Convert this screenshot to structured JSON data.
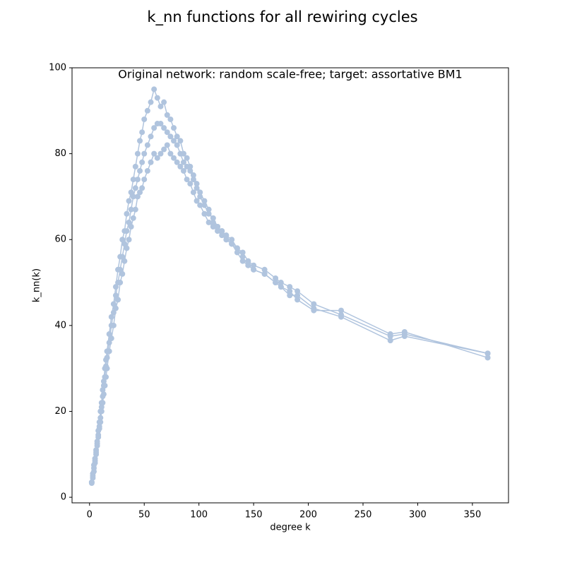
{
  "chart_data": {
    "type": "line",
    "title": "k_nn functions for all rewiring cycles",
    "subtitle": "Original network: random scale-free; target: assortative BM1",
    "x_label": "degree k",
    "y_label": "k_nn(k)",
    "x": [
      2,
      3,
      4,
      5,
      6,
      7,
      8,
      9,
      10,
      11,
      12,
      13,
      14,
      15,
      16,
      18,
      20,
      22,
      24,
      26,
      28,
      30,
      32,
      34,
      36,
      38,
      40,
      42,
      44,
      46,
      48,
      50,
      53,
      56,
      59,
      62,
      65,
      68,
      71,
      74,
      77,
      80,
      83,
      86,
      89,
      92,
      95,
      98,
      101,
      105,
      109,
      113,
      117,
      121,
      125,
      130,
      135,
      140,
      145,
      150,
      160,
      170,
      175,
      183,
      190,
      205,
      230,
      275,
      288,
      364
    ],
    "series": [
      {
        "color": "#b0c4de",
        "values": [
          3.5,
          5,
          6.8,
          8.5,
          10.5,
          12.5,
          14.5,
          16.5,
          18.5,
          21,
          23.5,
          26,
          28,
          30.5,
          32.5,
          36,
          40,
          43,
          47,
          50,
          53,
          56,
          59,
          62,
          64,
          67,
          70,
          72,
          74,
          76,
          78,
          80,
          82,
          84,
          86,
          87,
          87,
          86,
          85,
          84,
          83,
          82,
          80,
          78,
          77,
          76,
          74,
          72,
          70,
          68,
          66,
          65,
          63,
          62,
          61,
          60,
          58,
          57,
          55,
          54,
          53,
          51,
          50,
          49,
          48,
          45,
          42.5,
          37.5,
          38,
          33.5
        ]
      },
      {
        "color": "#b0c4de",
        "values": [
          3.3,
          5.5,
          7.5,
          9,
          11,
          13,
          15.5,
          17.5,
          20,
          22,
          25,
          27,
          30,
          32,
          34,
          38,
          42,
          45,
          49,
          53,
          56,
          60,
          62,
          66,
          69,
          71,
          74,
          77,
          80,
          83,
          85,
          88,
          90,
          92,
          95,
          93,
          91,
          92,
          89,
          88,
          86,
          84,
          83,
          80,
          79,
          77,
          75,
          73,
          71,
          69,
          67,
          64,
          63,
          62,
          60,
          59,
          58,
          56,
          54,
          53,
          52,
          50,
          49,
          48,
          46,
          43.5,
          43.5,
          38,
          38.5,
          32.5
        ]
      },
      {
        "color": "#b0c4de",
        "values": [
          3.5,
          4.5,
          6,
          8,
          10,
          12,
          14,
          16,
          17.5,
          20,
          22,
          24,
          26,
          28,
          30,
          34,
          37,
          40,
          44,
          46,
          50,
          52,
          55,
          58,
          60,
          63,
          65,
          67,
          70,
          71,
          72,
          74,
          76,
          78,
          80,
          79,
          80,
          81,
          82,
          80,
          79,
          78,
          77,
          76,
          74,
          73,
          71,
          69,
          68,
          66,
          64,
          63,
          62,
          61,
          60,
          59,
          57,
          55,
          54,
          53,
          52,
          50,
          49,
          47,
          47,
          44,
          42,
          36.5,
          37.5,
          33.5
        ]
      }
    ],
    "xlim": [
      -16,
      383
    ],
    "ylim": [
      -1.3,
      100
    ],
    "xticks": [
      0,
      50,
      100,
      150,
      200,
      250,
      300,
      350
    ],
    "yticks": [
      0,
      20,
      40,
      60,
      80,
      100
    ],
    "grid": false
  }
}
